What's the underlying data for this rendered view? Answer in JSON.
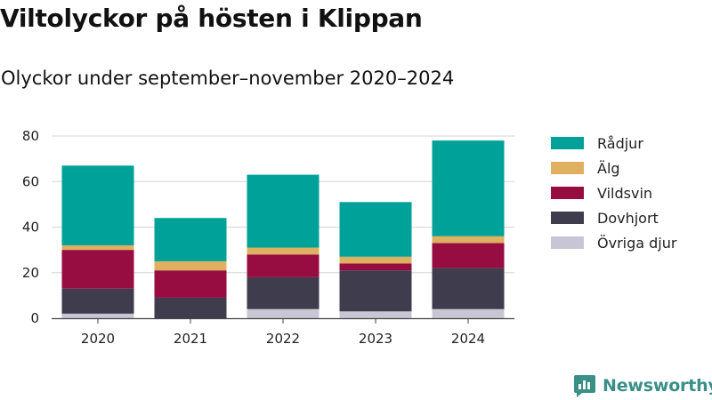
{
  "header": {
    "title": "Viltolyckor på hösten i Klippan",
    "subtitle": "Olyckor under september–november 2020–2024"
  },
  "branding": {
    "name": "Newsworthy",
    "icon": "newsworthy-logo-icon",
    "color": "#3a8f87"
  },
  "chart_data": {
    "type": "bar",
    "stacked": true,
    "title": "Viltolyckor på hösten i Klippan",
    "subtitle": "Olyckor under september–november 2020–2024",
    "xlabel": "",
    "ylabel": "",
    "categories": [
      "2020",
      "2021",
      "2022",
      "2023",
      "2024"
    ],
    "ylim": [
      0,
      80
    ],
    "yticks": [
      0,
      20,
      40,
      60,
      80
    ],
    "grid": true,
    "legend_position": "right",
    "series": [
      {
        "name": "Övriga djur",
        "color": "#c8c6d4",
        "values": [
          2,
          0,
          4,
          3,
          4
        ]
      },
      {
        "name": "Dovhjort",
        "color": "#3f3d4d",
        "values": [
          11,
          9,
          14,
          18,
          18
        ]
      },
      {
        "name": "Vildsvin",
        "color": "#970d42",
        "values": [
          17,
          12,
          10,
          3,
          11
        ]
      },
      {
        "name": "Älg",
        "color": "#dfb05f",
        "values": [
          2,
          4,
          3,
          3,
          3
        ]
      },
      {
        "name": "Rådjur",
        "color": "#00a198",
        "values": [
          35,
          19,
          32,
          24,
          42
        ]
      }
    ],
    "legend_order": [
      "Rådjur",
      "Älg",
      "Vildsvin",
      "Dovhjort",
      "Övriga djur"
    ]
  }
}
